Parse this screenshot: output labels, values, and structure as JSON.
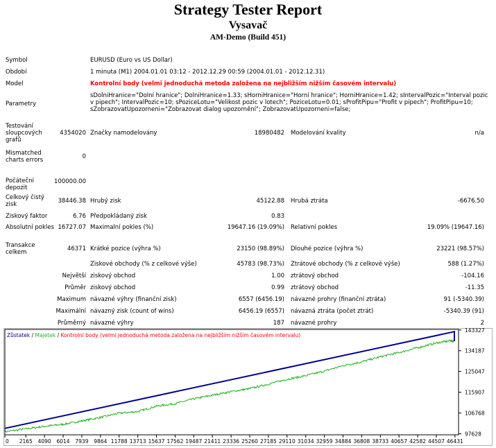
{
  "header": {
    "title": "Strategy Tester Report",
    "subtitle": "Vysavač",
    "build": "AM-Demo (Build 451)"
  },
  "report": {
    "symbol_label": "Symbol",
    "symbol_value": "EURUSD (Euro vs US Dollar)",
    "period_label": "Období",
    "period_value": "1 minuta (M1) 2004.01.01 03:12 - 2012.12.29 00:59 (2004.01.01 - 2012.12.31)",
    "model_label": "Model",
    "model_value": "Kontrolní body (velmi jednoduchá metoda založena na nejbližším nižším časovém intervalu)",
    "params_label": "Parametry",
    "params_value": "sDolniHranice=\"Dolní hranice\"; DolniHranice=1.33; sHorniHranice=\"Horní hranice\"; HorniHranice=1.42; sIntervalPozic=\"Interval pozic v pipech\"; IntervalPozic=10; sPoziceLotu=\"Velikost pozic v lotech\"; PoziceLotu=0.01; sProfitPipu=\"Profit v pipech\"; ProfitPipu=10; sZobrazovatUpozorneni=\"Zobrazovat dialog upozornění\"; ZobrazovatUpozorneni=false;",
    "bars_label": "Testování sloupcových grafů",
    "bars_value": "4354020",
    "ticks_label": "Značky namodelovány",
    "ticks_value": "18980482",
    "quality_label": "Modelování kvality",
    "quality_value": "n/a",
    "mismatch_label": "Mismatched charts errors",
    "mismatch_value": "0",
    "deposit_label": "Počáteční depozit",
    "deposit_value": "100000.00",
    "net_label": "Celkový čistý zisk",
    "net_value": "38446.38",
    "gross_profit_label": "Hrubý zisk",
    "gross_profit_value": "45122.88",
    "gross_loss_label": "Hrubá ztráta",
    "gross_loss_value": "-6676.50",
    "pf_label": "Ziskový faktor",
    "pf_value": "6.76",
    "payoff_label": "Předpokládaný zisk",
    "payoff_value": "0.83",
    "abs_dd_label": "Absolutní pokles",
    "abs_dd_value": "16727.07",
    "max_dd_label": "Maximalní pokles (%)",
    "max_dd_value": "19647.16 (19.09%)",
    "rel_dd_label": "Relativní pokles",
    "rel_dd_value": "19.09% (19647.16)",
    "trades_label": "Transakce celkem",
    "trades_value": "46371",
    "short_label": "Krátké pozice (výhra %)",
    "short_value": "23150 (98.89%)",
    "long_label": "Dlouhé pozice (výhra %)",
    "long_value": "23221 (98.57%)",
    "profit_trades_label": "Ziskové obchody (% z celkové výše)",
    "profit_trades_value": "45783 (98.73%)",
    "loss_trades_label": "Ztrátové obchody (% z celkové výše)",
    "loss_trades_value": "588 (1.27%)",
    "largest_label": "Největší",
    "largest_profit_label": "ziskový obchod",
    "largest_profit_value": "1.00",
    "largest_loss_label": "ztrátový obchod",
    "largest_loss_value": "-104.16",
    "average_label": "Průměr",
    "average_profit_label": "ziskový obchod",
    "average_profit_value": "0.99",
    "average_loss_label": "ztrátový obchod",
    "average_loss_value": "-11.35",
    "maximum_label": "Maximum",
    "max_consec_wins_label": "návazné výhry (finanční zisk)",
    "max_consec_wins_value": "6557 (6456.19)",
    "max_consec_losses_label": "návazné prohry (finanční ztráta)",
    "max_consec_losses_value": "91 (-5340.39)",
    "maximal_label": "Maximální",
    "maximal_profit_label": "návazný zisk (count of wins)",
    "maximal_profit_value": "6456.19 (6557)",
    "maximal_loss_label": "návazná ztráta (počet ztrát)",
    "maximal_loss_value": "-5340.39 (91)",
    "avg_consec_label": "Průměrný",
    "avg_consec_wins_label": "návazné výhry",
    "avg_consec_wins_value": "187",
    "avg_consec_losses_label": "návazné prohry",
    "avg_consec_losses_value": "2"
  },
  "chart_data": {
    "type": "line",
    "legend": {
      "balance": "Zůstatek",
      "sep1": " / ",
      "equity": "Majetek",
      "sep2": " / ",
      "model": "Kontrolní body (velmi jednoduchá metoda založena na nejbližším nižším časovém intervalu)"
    },
    "x_ticks": [
      "0",
      "2165",
      "4090",
      "6014",
      "7939",
      "9864",
      "11788",
      "13713",
      "15637",
      "17562",
      "19487",
      "21411",
      "23336",
      "25260",
      "27185",
      "29110",
      "31034",
      "32959",
      "34884",
      "36808",
      "38733",
      "40657",
      "42582",
      "44507",
      "46431"
    ],
    "y_ticks": [
      "143327",
      "134187",
      "125047",
      "115907",
      "106768",
      "97628"
    ],
    "ylim": [
      97628,
      143327
    ],
    "xlim": [
      0,
      46800
    ],
    "series": [
      {
        "name": "Zůstatek",
        "color": "#00008b",
        "x": [
          0,
          46371,
          46371
        ],
        "y": [
          100000,
          142600,
          138400
        ]
      },
      {
        "name": "Majetek",
        "color": "#22b022",
        "x": [
          0,
          2165,
          4090,
          6014,
          7939,
          9864,
          11788,
          13713,
          15637,
          17562,
          19487,
          21411,
          23336,
          25260,
          27185,
          29110,
          31034,
          32959,
          34884,
          36808,
          38733,
          40657,
          42582,
          44507,
          46000,
          46371
        ],
        "y": [
          98500,
          99800,
          100900,
          101800,
          103300,
          104800,
          106700,
          107400,
          109800,
          110900,
          113000,
          114600,
          116200,
          117500,
          119500,
          121600,
          123200,
          125200,
          127600,
          129300,
          131500,
          133400,
          135500,
          137600,
          138600,
          138400
        ]
      }
    ],
    "colors": {
      "balance": "#00008b",
      "equity": "#22b022",
      "model": "#ff0000"
    }
  }
}
